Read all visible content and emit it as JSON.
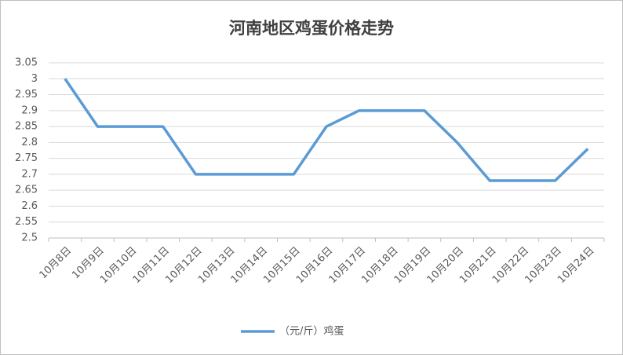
{
  "chart_data": {
    "type": "line",
    "title": "河南地区鸡蛋价格走势",
    "categories": [
      "10月8日",
      "10月9日",
      "10月10日",
      "10月11日",
      "10月12日",
      "10月13日",
      "10月14日",
      "10月15日",
      "10月16日",
      "10月17日",
      "10月18日",
      "10月19日",
      "10月20日",
      "10月21日",
      "10月22日",
      "10月23日",
      "10月24日"
    ],
    "series": [
      {
        "name": "（元/斤）鸡蛋",
        "color": "#5b9bd5",
        "values": [
          3,
          2.85,
          2.85,
          2.85,
          2.7,
          2.7,
          2.7,
          2.7,
          2.85,
          2.9,
          2.9,
          2.9,
          2.8,
          2.68,
          2.68,
          2.68,
          2.78
        ]
      }
    ],
    "ylim": [
      2.5,
      3.05
    ],
    "yticks": [
      2.5,
      2.55,
      2.6,
      2.65,
      2.7,
      2.75,
      2.8,
      2.85,
      2.9,
      2.95,
      3,
      3.05
    ],
    "grid": true,
    "legend": "bottom"
  }
}
